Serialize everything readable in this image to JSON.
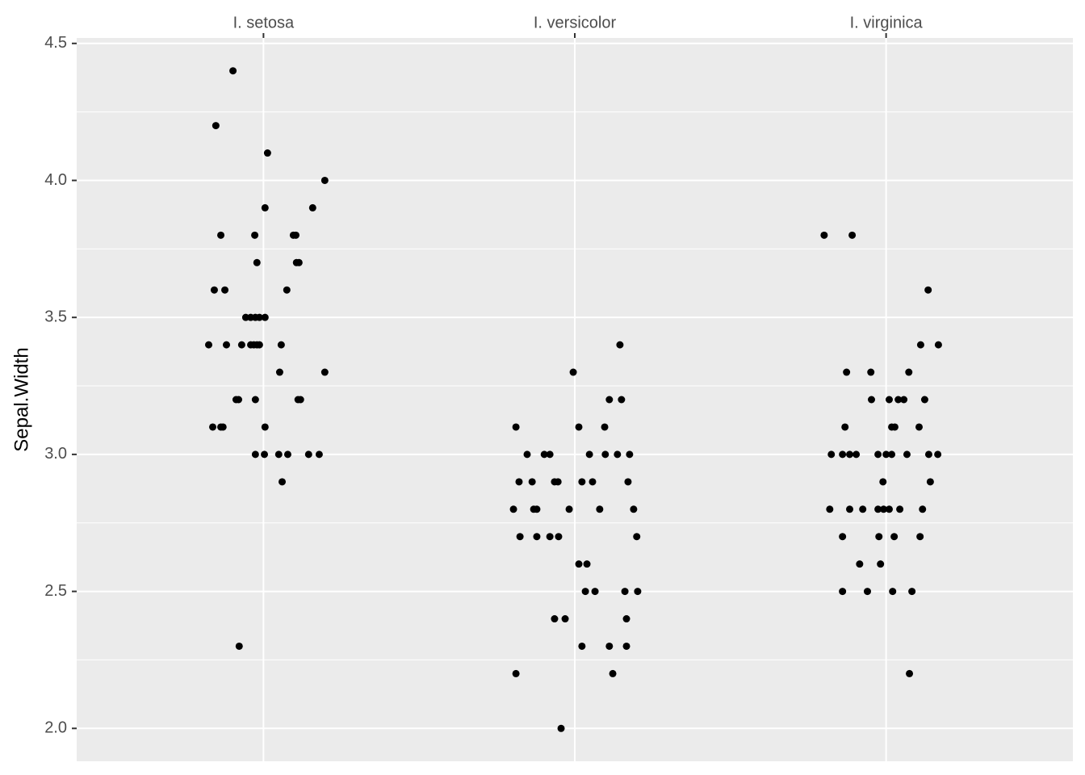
{
  "chart_data": {
    "type": "scatter",
    "y_label": "Sepal.Width",
    "x_axis_position": "top",
    "grid": true,
    "background": "#ebebeb",
    "color": "#000000",
    "xlim": [
      0.4,
      3.6
    ],
    "ylim": [
      1.88,
      4.52
    ],
    "xticks": [
      {
        "value": 1,
        "label": "I. setosa"
      },
      {
        "value": 2,
        "label": "I. versicolor"
      },
      {
        "value": 3,
        "label": "I. virginica"
      }
    ],
    "yticks": [
      {
        "value": 2,
        "label": "2.0"
      },
      2.5,
      {
        "value": 3,
        "label": "3.0"
      },
      3.5,
      {
        "value": 4,
        "label": "4.0"
      },
      4.5
    ],
    "minor_yticks": [
      2.25,
      2.75,
      3.25,
      3.75,
      4.25
    ],
    "x": [
      0.902,
      0.847,
      1.013,
      1.197,
      1.005,
      1.158,
      0.863,
      0.972,
      1.096,
      1.104,
      0.979,
      1.106,
      1.114,
      0.842,
      0.876,
      1.075,
      0.943,
      0.959,
      0.974,
      0.987,
      1.005,
      0.824,
      0.881,
      0.93,
      0.959,
      0.969,
      0.979,
      0.987,
      1.057,
      1.052,
      1.197,
      0.912,
      0.92,
      0.974,
      1.111,
      1.119,
      0.837,
      0.863,
      0.87,
      1.005,
      0.974,
      1.003,
      1.049,
      1.078,
      1.145,
      1.179,
      1.06,
      0.922,
      2.145,
      1.995,
      2.111,
      2.15,
      1.811,
      2.013,
      2.096,
      1.847,
      1.902,
      1.92,
      2.047,
      2.098,
      2.137,
      2.176,
      1.821,
      1.863,
      1.935,
      1.946,
      2.023,
      2.057,
      2.171,
      1.803,
      1.868,
      1.878,
      1.982,
      2.08,
      2.189,
      1.824,
      1.878,
      1.92,
      1.948,
      2.199,
      2.013,
      2.039,
      2.034,
      2.065,
      2.161,
      2.202,
      1.935,
      1.969,
      2.166,
      2.023,
      2.111,
      2.166,
      1.811,
      2.122,
      1.956,
      2.801,
      2.891,
      3.135,
      3.111,
      3.168,
      2.873,
      2.951,
      3.073,
      2.953,
      3.01,
      3.039,
      3.057,
      3.124,
      2.868,
      3.018,
      3.028,
      3.106,
      2.824,
      2.86,
      2.883,
      2.904,
      2.974,
      3.0,
      3.018,
      3.067,
      3.137,
      3.166,
      2.99,
      3.142,
      2.819,
      2.883,
      2.925,
      2.974,
      2.992,
      3.01,
      3.044,
      3.117,
      2.86,
      2.977,
      3.026,
      3.109,
      2.915,
      2.982,
      2.86,
      2.94,
      3.021,
      3.083,
      3.075
    ],
    "values": [
      4.4,
      4.2,
      4.1,
      4.0,
      3.9,
      3.9,
      3.8,
      3.8,
      3.8,
      3.8,
      3.7,
      3.7,
      3.7,
      3.6,
      3.6,
      3.6,
      3.5,
      3.5,
      3.5,
      3.5,
      3.5,
      3.4,
      3.4,
      3.4,
      3.4,
      3.4,
      3.4,
      3.4,
      3.4,
      3.3,
      3.3,
      3.2,
      3.2,
      3.2,
      3.2,
      3.2,
      3.1,
      3.1,
      3.1,
      3.1,
      3.0,
      3.0,
      3.0,
      3.0,
      3.0,
      3.0,
      2.9,
      2.3,
      3.4,
      3.3,
      3.2,
      3.2,
      3.1,
      3.1,
      3.1,
      3.0,
      3.0,
      3.0,
      3.0,
      3.0,
      3.0,
      3.0,
      2.9,
      2.9,
      2.9,
      2.9,
      2.9,
      2.9,
      2.9,
      2.8,
      2.8,
      2.8,
      2.8,
      2.8,
      2.8,
      2.7,
      2.7,
      2.7,
      2.7,
      2.7,
      2.6,
      2.6,
      2.5,
      2.5,
      2.5,
      2.5,
      2.4,
      2.4,
      2.4,
      2.3,
      2.3,
      2.3,
      2.2,
      2.2,
      2.0,
      3.8,
      3.8,
      3.6,
      3.4,
      3.4,
      3.3,
      3.3,
      3.3,
      3.2,
      3.2,
      3.2,
      3.2,
      3.2,
      3.1,
      3.1,
      3.1,
      3.1,
      3.0,
      3.0,
      3.0,
      3.0,
      3.0,
      3.0,
      3.0,
      3.0,
      3.0,
      3.0,
      2.9,
      2.9,
      2.8,
      2.8,
      2.8,
      2.8,
      2.8,
      2.8,
      2.8,
      2.8,
      2.7,
      2.7,
      2.7,
      2.7,
      2.6,
      2.6,
      2.5,
      2.5,
      2.5,
      2.5,
      2.2
    ]
  }
}
